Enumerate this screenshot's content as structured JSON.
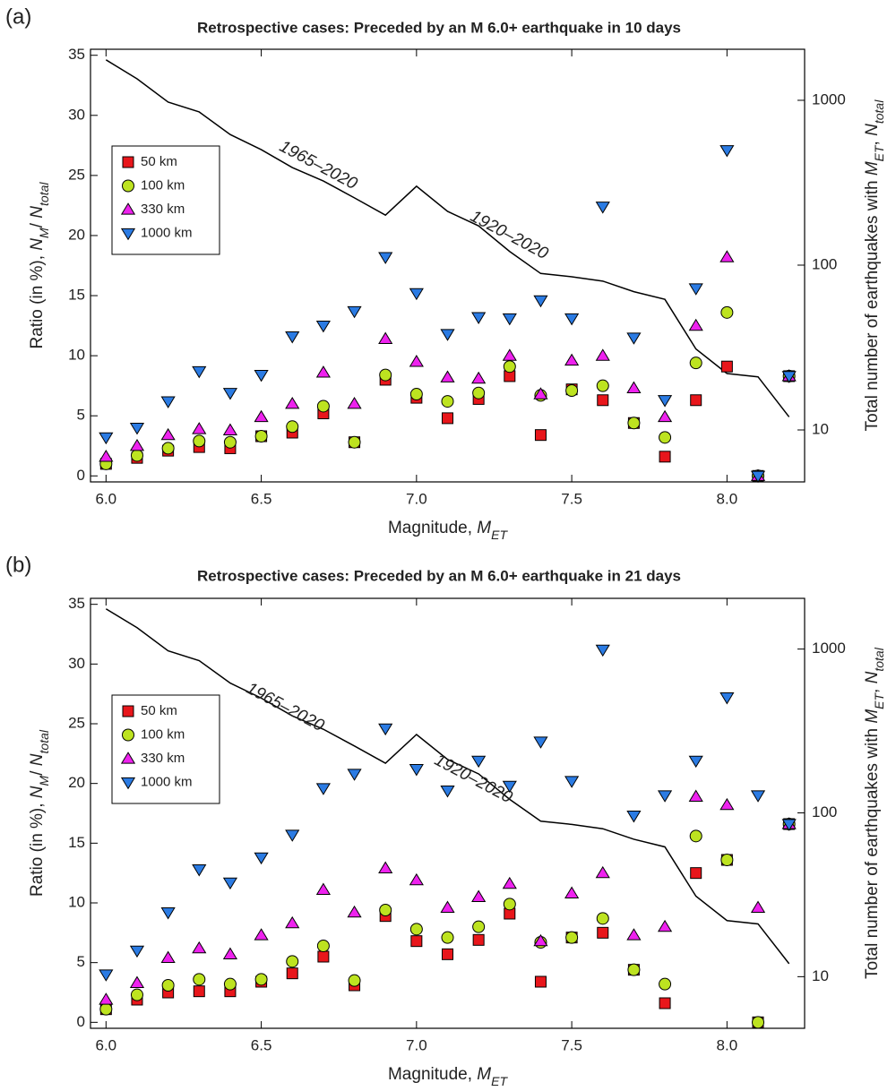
{
  "chart_data": [
    {
      "type": "scatter",
      "panel_label": "(a)",
      "title": "Retrospective cases: Preceded by an M 6.0+ earthquake in 10 days",
      "x_label": [
        {
          "text": "Magnitude, "
        },
        {
          "text": "M",
          "italic": true
        },
        {
          "text": "ET",
          "italic": true,
          "sub": true
        }
      ],
      "y_label": [
        {
          "text": "Ratio (in %), "
        },
        {
          "text": "N",
          "italic": true
        },
        {
          "text": "M",
          "italic": true,
          "sub": true
        },
        {
          "text": "/ "
        },
        {
          "text": "N",
          "italic": true
        },
        {
          "text": "total",
          "italic": true,
          "sub": true
        }
      ],
      "y2_label": [
        {
          "text": "Total number of earthquakes with "
        },
        {
          "text": "M",
          "italic": true
        },
        {
          "text": "ET",
          "italic": true,
          "sub": true
        },
        {
          "text": ", "
        },
        {
          "text": "N",
          "italic": true
        },
        {
          "text": "total",
          "italic": true,
          "sub": true
        }
      ],
      "x": [
        6.0,
        6.1,
        6.2,
        6.3,
        6.4,
        6.5,
        6.6,
        6.7,
        6.8,
        6.9,
        7.0,
        7.1,
        7.2,
        7.3,
        7.4,
        7.5,
        7.6,
        7.7,
        7.8,
        7.9,
        8.0,
        8.1,
        8.2
      ],
      "series": [
        {
          "axis": "y2",
          "style": "line",
          "color": "#000000",
          "values": [
            1760,
            1350,
            975,
            850,
            620,
            502,
            391,
            324,
            256,
            201,
            301,
            212,
            173,
            121,
            89,
            85,
            80,
            69,
            62,
            31,
            22,
            21,
            12
          ]
        },
        {
          "name": "50 km",
          "marker": "square",
          "color": "#e8161b",
          "values": [
            1.0,
            1.5,
            2.1,
            2.4,
            2.3,
            3.3,
            3.6,
            5.2,
            2.8,
            8.0,
            6.5,
            4.8,
            6.4,
            8.3,
            3.4,
            7.2,
            6.3,
            4.4,
            1.6,
            6.3,
            9.1,
            0,
            8.3
          ]
        },
        {
          "name": "100 km",
          "marker": "circle",
          "color": "#bde320",
          "values": [
            1.0,
            1.7,
            2.3,
            2.9,
            2.8,
            3.3,
            4.1,
            5.8,
            2.8,
            8.4,
            6.8,
            6.2,
            6.9,
            9.1,
            6.7,
            7.1,
            7.5,
            4.4,
            3.2,
            9.4,
            13.6,
            0,
            8.3
          ]
        },
        {
          "name": "330 km",
          "marker": "triangle-up",
          "color": "#ee22ee",
          "values": [
            1.6,
            2.5,
            3.4,
            3.9,
            3.8,
            4.9,
            6.0,
            8.6,
            6.0,
            11.4,
            9.5,
            8.2,
            8.1,
            10.0,
            6.8,
            9.6,
            10.0,
            7.3,
            4.9,
            12.5,
            18.2,
            0,
            8.3
          ]
        },
        {
          "name": "1000 km",
          "marker": "triangle-down",
          "color": "#2b7be3",
          "values": [
            3.2,
            4.0,
            6.2,
            8.7,
            6.9,
            8.4,
            11.6,
            12.5,
            13.7,
            18.2,
            15.2,
            11.8,
            13.2,
            13.1,
            14.6,
            13.1,
            22.4,
            11.5,
            6.3,
            15.6,
            27.1,
            0,
            8.3
          ]
        }
      ],
      "annotations": [
        "1965–2020",
        "1920–2020"
      ],
      "xlim": [
        5.95,
        8.25
      ],
      "xticks": [
        {
          "value": 6,
          "label": "6.0"
        },
        6.5,
        {
          "value": 7,
          "label": "7.0"
        },
        7.5,
        {
          "value": 8,
          "label": "8.0"
        }
      ],
      "ylim": [
        -0.5,
        35.5
      ],
      "yticks": [
        0,
        5,
        10,
        15,
        20,
        25,
        30,
        35
      ],
      "y2lim": [
        4.84,
        2040
      ],
      "y2ticks": [
        10,
        100,
        1000
      ],
      "y2_log": true,
      "legend": "upper left"
    },
    {
      "type": "scatter",
      "panel_label": "(b)",
      "title": "Retrospective cases: Preceded by an M 6.0+ earthquake in 21 days",
      "x_label": [
        {
          "text": "Magnitude, "
        },
        {
          "text": "M",
          "italic": true
        },
        {
          "text": "ET",
          "italic": true,
          "sub": true
        }
      ],
      "y_label": [
        {
          "text": "Ratio (in %), "
        },
        {
          "text": "N",
          "italic": true
        },
        {
          "text": "M",
          "italic": true,
          "sub": true
        },
        {
          "text": "/ "
        },
        {
          "text": "N",
          "italic": true
        },
        {
          "text": "total",
          "italic": true,
          "sub": true
        }
      ],
      "y2_label": [
        {
          "text": "Total number of earthquakes with  "
        },
        {
          "text": "M",
          "italic": true
        },
        {
          "text": "ET",
          "italic": true,
          "sub": true
        },
        {
          "text": ", "
        },
        {
          "text": "N",
          "italic": true
        },
        {
          "text": "total",
          "italic": true,
          "sub": true
        }
      ],
      "x": [
        6.0,
        6.1,
        6.2,
        6.3,
        6.4,
        6.5,
        6.6,
        6.7,
        6.8,
        6.9,
        7.0,
        7.1,
        7.2,
        7.3,
        7.4,
        7.5,
        7.6,
        7.7,
        7.8,
        7.9,
        8.0,
        8.1,
        8.2
      ],
      "series": [
        {
          "axis": "y2",
          "style": "line",
          "color": "#000000",
          "values": [
            1760,
            1350,
            975,
            850,
            620,
            502,
            391,
            324,
            256,
            201,
            301,
            212,
            173,
            121,
            89,
            85,
            80,
            69,
            62,
            31,
            22,
            21,
            12
          ]
        },
        {
          "name": "50 km",
          "marker": "square",
          "color": "#e8161b",
          "values": [
            1.1,
            1.9,
            2.5,
            2.6,
            2.6,
            3.4,
            4.1,
            5.5,
            3.1,
            8.9,
            6.8,
            5.7,
            6.9,
            9.1,
            3.4,
            7.1,
            7.5,
            4.4,
            1.6,
            12.5,
            13.6,
            0,
            16.6
          ]
        },
        {
          "name": "100 km",
          "marker": "circle",
          "color": "#bde320",
          "values": [
            1.1,
            2.3,
            3.1,
            3.6,
            3.2,
            3.6,
            5.1,
            6.4,
            3.5,
            9.4,
            7.8,
            7.1,
            8.0,
            9.9,
            6.7,
            7.1,
            8.7,
            4.4,
            3.2,
            15.6,
            13.6,
            0,
            16.6
          ]
        },
        {
          "name": "330 km",
          "marker": "triangle-up",
          "color": "#ee22ee",
          "values": [
            1.9,
            3.3,
            5.4,
            6.2,
            5.7,
            7.3,
            8.3,
            11.1,
            9.2,
            12.9,
            11.9,
            9.6,
            10.5,
            11.6,
            6.8,
            10.8,
            12.5,
            7.3,
            8.0,
            18.9,
            18.2,
            9.6,
            16.6
          ]
        },
        {
          "name": "1000 km",
          "marker": "triangle-down",
          "color": "#2b7be3",
          "values": [
            4.0,
            6.0,
            9.2,
            12.8,
            11.7,
            13.8,
            15.7,
            19.6,
            20.8,
            24.6,
            21.2,
            19.4,
            21.9,
            19.8,
            23.5,
            20.2,
            31.2,
            17.3,
            19.0,
            21.9,
            27.2,
            19.0,
            16.6
          ]
        }
      ],
      "annotations": [
        "1965–2020",
        "1920–2020"
      ],
      "xlim": [
        5.95,
        8.25
      ],
      "xticks": [
        {
          "value": 6,
          "label": "6.0"
        },
        6.5,
        {
          "value": 7,
          "label": "7.0"
        },
        7.5,
        {
          "value": 8,
          "label": "8.0"
        }
      ],
      "ylim": [
        -0.5,
        35.5
      ],
      "yticks": [
        0,
        5,
        10,
        15,
        20,
        25,
        30,
        35
      ],
      "y2lim": [
        4.84,
        2040
      ],
      "y2ticks": [
        10,
        100,
        1000
      ],
      "y2_log": true,
      "legend": "upper left"
    }
  ]
}
